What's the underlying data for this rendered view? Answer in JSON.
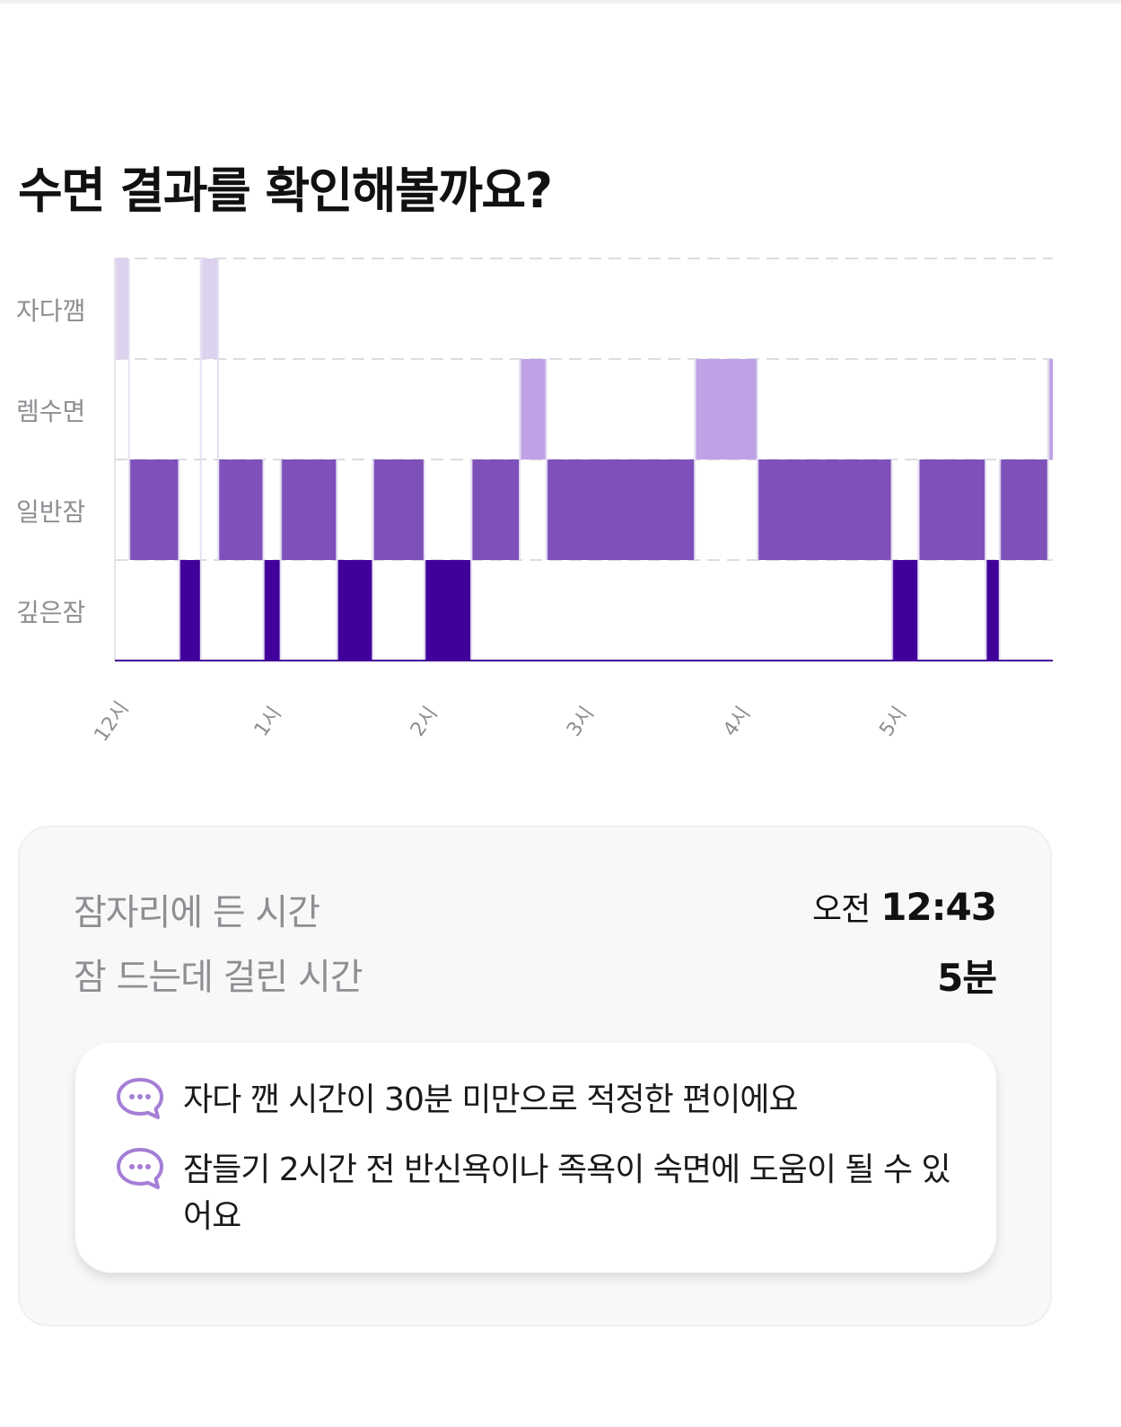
{
  "title": "수면 결과를 확인해볼까요?",
  "colors": {
    "awake": "#dcd2ee",
    "rem": "#bea2e5",
    "light": "#7e50b9",
    "deep": "#41009a",
    "icon": "#a57ed6"
  },
  "chart_data": {
    "type": "table",
    "title": "",
    "stages": [
      "자다깸",
      "렘수면",
      "일반잠",
      "깊은잠"
    ],
    "x_unit": "hour",
    "xlim": [
      0.0,
      6.0
    ],
    "x_ticks": [
      {
        "value": 0,
        "label": "12시"
      },
      {
        "value": 1,
        "label": "1시"
      },
      {
        "value": 2,
        "label": "2시"
      },
      {
        "value": 3,
        "label": "3시"
      },
      {
        "value": 4,
        "label": "4시"
      },
      {
        "value": 5,
        "label": "5시"
      }
    ],
    "segments": [
      {
        "stage": 0,
        "start": 0.0,
        "end": 0.09
      },
      {
        "stage": 2,
        "start": 0.09,
        "end": 0.41
      },
      {
        "stage": 3,
        "start": 0.41,
        "end": 0.55
      },
      {
        "stage": 0,
        "start": 0.55,
        "end": 0.66
      },
      {
        "stage": 2,
        "start": 0.66,
        "end": 0.95
      },
      {
        "stage": 3,
        "start": 0.95,
        "end": 1.06
      },
      {
        "stage": 2,
        "start": 1.06,
        "end": 1.42
      },
      {
        "stage": 3,
        "start": 1.42,
        "end": 1.65
      },
      {
        "stage": 2,
        "start": 1.65,
        "end": 1.98
      },
      {
        "stage": 3,
        "start": 1.98,
        "end": 2.28
      },
      {
        "stage": 2,
        "start": 2.28,
        "end": 2.59
      },
      {
        "stage": 1,
        "start": 2.59,
        "end": 2.76
      },
      {
        "stage": 2,
        "start": 2.76,
        "end": 3.71
      },
      {
        "stage": 1,
        "start": 3.71,
        "end": 4.11
      },
      {
        "stage": 2,
        "start": 4.11,
        "end": 4.97
      },
      {
        "stage": 3,
        "start": 4.97,
        "end": 5.14
      },
      {
        "stage": 2,
        "start": 5.14,
        "end": 5.57
      },
      {
        "stage": 3,
        "start": 5.57,
        "end": 5.66
      },
      {
        "stage": 2,
        "start": 5.66,
        "end": 5.97
      },
      {
        "stage": 1,
        "start": 5.97,
        "end": 6.0
      }
    ]
  },
  "summary": {
    "bedtime_label": "잠자리에 든 시간",
    "bedtime_ampm": "오전",
    "bedtime_value": "12:43",
    "latency_label": "잠 드는데 걸린 시간",
    "latency_value": "5분"
  },
  "tips": [
    {
      "icon": "chat-bubble-icon",
      "text": "자다 깬 시간이 30분 미만으로 적정한 편이에요"
    },
    {
      "icon": "chat-bubble-icon",
      "text": "잠들기 2시간 전 반신욕이나 족욕이 숙면에 도움이 될 수 있어요"
    }
  ]
}
